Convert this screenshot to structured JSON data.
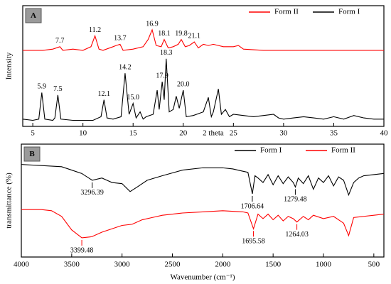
{
  "chart_data": [
    {
      "type": "line",
      "panel": "A",
      "xlabel": "2 theta",
      "ylabel": "Intensity",
      "xlim": [
        4,
        40
      ],
      "xticks": [
        5,
        10,
        15,
        20,
        25,
        30,
        35,
        40
      ],
      "ylim": [
        0,
        100
      ],
      "legend": "upper right",
      "series": [
        {
          "name": "Form II",
          "color": "#ff0000",
          "x": [
            4,
            5,
            6,
            7,
            7.7,
            8,
            9,
            10,
            10.8,
            11.2,
            11.6,
            12,
            13,
            13.3,
            13.7,
            14,
            15,
            16,
            16.5,
            16.9,
            17.3,
            17.8,
            18.1,
            18.5,
            19,
            19.5,
            19.8,
            20.2,
            20.6,
            21.1,
            21.5,
            22,
            22.5,
            23,
            24,
            25,
            25.5,
            26,
            28,
            30,
            32,
            34,
            36,
            38,
            40
          ],
          "values": [
            63,
            63,
            63,
            64,
            66,
            63,
            64,
            63,
            66,
            75,
            64,
            63,
            66,
            67,
            68,
            63,
            64,
            66,
            72,
            80,
            67,
            66,
            72,
            65,
            66,
            68,
            72,
            66,
            67,
            70,
            65,
            68,
            67,
            68,
            66,
            66,
            67,
            64,
            63,
            63,
            63,
            63,
            63,
            63,
            63
          ],
          "annotations": [
            {
              "x": 7.7
            },
            {
              "x": 11.2
            },
            {
              "x": 13.7
            },
            {
              "x": 16.9
            },
            {
              "x": 18.1
            },
            {
              "x": 19.8
            },
            {
              "x": 21.1
            }
          ]
        },
        {
          "name": "Form I",
          "color": "#000000",
          "x": [
            4,
            5,
            5.6,
            5.9,
            6.2,
            7,
            7.2,
            7.5,
            7.8,
            9,
            10,
            11,
            11.8,
            12.1,
            12.4,
            13,
            13.8,
            14.2,
            14.6,
            15,
            15.3,
            15.7,
            16,
            16.3,
            17,
            17.4,
            17.6,
            17.9,
            18.1,
            18.3,
            18.6,
            19,
            19.3,
            19.6,
            20,
            20.3,
            21,
            22,
            22.5,
            22.8,
            23,
            23.5,
            23.8,
            24.2,
            24.6,
            25,
            26,
            27,
            28,
            29,
            29.5,
            30,
            31,
            32,
            33,
            34,
            35,
            36,
            37,
            38,
            39,
            40
          ],
          "values": [
            6,
            5,
            6,
            28,
            6,
            5,
            7,
            26,
            6,
            5,
            5,
            5,
            8,
            22,
            7,
            6,
            8,
            44,
            10,
            19,
            7,
            12,
            6,
            8,
            10,
            30,
            14,
            37,
            22,
            56,
            12,
            14,
            25,
            15,
            30,
            8,
            9,
            12,
            24,
            8,
            12,
            31,
            10,
            14,
            8,
            10,
            9,
            8,
            9,
            10,
            7,
            6,
            7,
            8,
            7,
            6,
            8,
            6,
            9,
            7,
            6,
            6
          ],
          "annotations": [
            {
              "x": 5.9
            },
            {
              "x": 7.5
            },
            {
              "x": 12.1
            },
            {
              "x": 14.2
            },
            {
              "x": 15,
              "label": "15.0"
            },
            {
              "x": 17.9
            },
            {
              "x": 18.3
            },
            {
              "x": 20,
              "label": "20.0"
            }
          ]
        }
      ]
    },
    {
      "type": "line",
      "panel": "B",
      "xlabel": "Wavenumber (cm⁻¹)",
      "ylabel": "transmittance (%)",
      "xlim": [
        4000,
        400
      ],
      "xticks": [
        4000,
        3500,
        3000,
        2500,
        2000,
        1500,
        1000,
        500
      ],
      "ylim": [
        0,
        100
      ],
      "legend": "upper right",
      "series": [
        {
          "name": "Form I",
          "color": "#000000",
          "x": [
            4000,
            3800,
            3600,
            3500,
            3400,
            3296,
            3200,
            3100,
            3000,
            2920,
            2850,
            2750,
            2600,
            2400,
            2200,
            2000,
            1900,
            1800,
            1750,
            1706,
            1680,
            1650,
            1600,
            1550,
            1500,
            1450,
            1400,
            1350,
            1300,
            1279,
            1250,
            1200,
            1150,
            1100,
            1050,
            1000,
            950,
            900,
            850,
            800,
            750,
            700,
            650,
            600,
            500,
            400
          ],
          "values": [
            82,
            81,
            80,
            77,
            74,
            68,
            70,
            66,
            65,
            58,
            62,
            68,
            72,
            77,
            79,
            79,
            78,
            76,
            75,
            56,
            72,
            70,
            66,
            73,
            64,
            72,
            65,
            71,
            66,
            62,
            70,
            65,
            72,
            60,
            70,
            66,
            72,
            63,
            71,
            68,
            55,
            66,
            70,
            72,
            73,
            74
          ],
          "annotations": [
            {
              "x": 3296.39
            },
            {
              "x": 1706.64
            },
            {
              "x": 1279.48
            }
          ]
        },
        {
          "name": "Form II",
          "color": "#ff0000",
          "x": [
            4000,
            3800,
            3700,
            3600,
            3500,
            3399,
            3300,
            3200,
            3100,
            3000,
            2900,
            2800,
            2700,
            2600,
            2400,
            2200,
            2000,
            1800,
            1750,
            1695,
            1650,
            1600,
            1550,
            1500,
            1450,
            1400,
            1350,
            1300,
            1264,
            1200,
            1150,
            1100,
            1000,
            900,
            800,
            750,
            700,
            600,
            500,
            400
          ],
          "values": [
            42,
            42,
            41,
            36,
            24,
            17,
            18,
            22,
            25,
            28,
            29,
            33,
            35,
            37,
            39,
            40,
            41,
            40,
            39,
            25,
            38,
            34,
            38,
            33,
            37,
            32,
            36,
            34,
            31,
            36,
            33,
            37,
            34,
            36,
            30,
            19,
            35,
            36,
            37,
            38
          ],
          "annotations": [
            {
              "x": 3399.48
            },
            {
              "x": 1695.58
            },
            {
              "x": 1264.03
            }
          ]
        }
      ]
    }
  ]
}
